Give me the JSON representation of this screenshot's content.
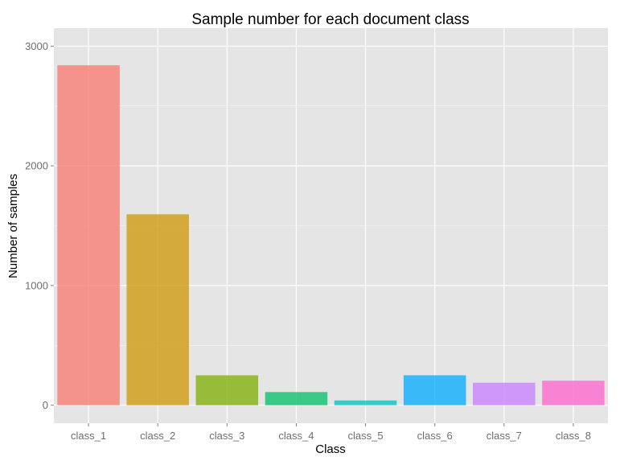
{
  "chart_data": {
    "type": "bar",
    "title": "Sample number for each document class",
    "xlabel": "Class",
    "ylabel": "Number of samples",
    "categories": [
      "class_1",
      "class_2",
      "class_3",
      "class_4",
      "class_5",
      "class_6",
      "class_7",
      "class_8"
    ],
    "values": [
      2840,
      1595,
      250,
      110,
      40,
      250,
      188,
      205
    ],
    "ylim": [
      -150,
      3150
    ],
    "yticks": [
      0,
      1000,
      2000,
      3000
    ],
    "ytick_labels": [
      "0",
      "1000",
      "2000",
      "3000"
    ],
    "grid": true,
    "colors": [
      "#F8766D",
      "#CD9600",
      "#7CAE00",
      "#00BE67",
      "#00BFC4",
      "#00A9FF",
      "#C77CFF",
      "#FF61CC"
    ],
    "panel_background": "#E5E5E5",
    "gridline_color": "#FFFFFF"
  }
}
